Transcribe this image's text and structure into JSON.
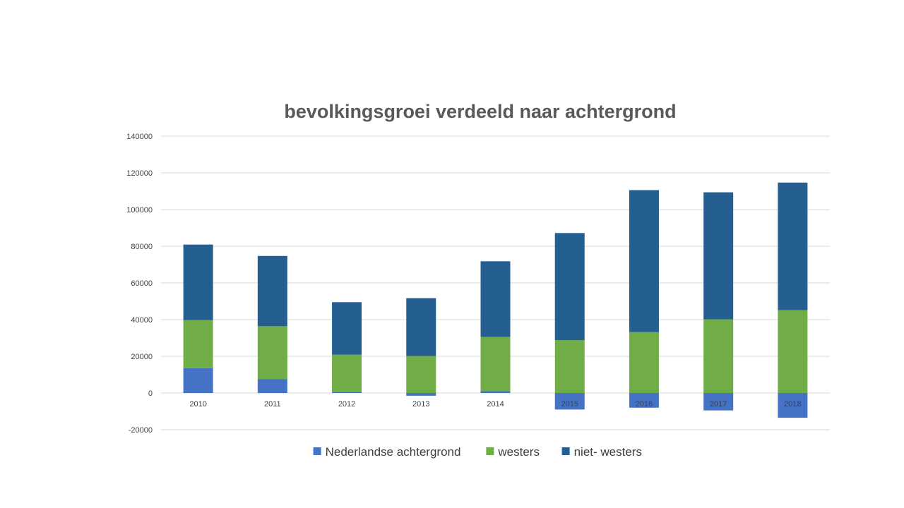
{
  "chart_data": {
    "type": "bar",
    "stacked": true,
    "title": "bevolkingsgroei verdeeld naar achtergrond",
    "xlabel": "",
    "ylabel": "",
    "ylim": [
      -20000,
      140000
    ],
    "yticks": [
      -20000,
      0,
      20000,
      40000,
      60000,
      80000,
      100000,
      120000,
      140000
    ],
    "grid": true,
    "legend_position": "bottom",
    "categories": [
      "2010",
      "2011",
      "2012",
      "2013",
      "2014",
      "2015",
      "2016",
      "2017",
      "2018"
    ],
    "series": [
      {
        "name": "Nederlandse achtergrond",
        "color": "#4472C4",
        "values": [
          13500,
          7500,
          500,
          -1500,
          1000,
          -9000,
          -8000,
          -9500,
          -13500
        ]
      },
      {
        "name": "westers",
        "color": "#70AD47",
        "values": [
          26300,
          28900,
          20400,
          20200,
          29600,
          28800,
          33200,
          40200,
          45200
        ]
      },
      {
        "name": "niet- westers",
        "color": "#255E91",
        "values": [
          41100,
          38300,
          28600,
          31500,
          41200,
          58400,
          77400,
          69200,
          69500
        ]
      }
    ]
  }
}
